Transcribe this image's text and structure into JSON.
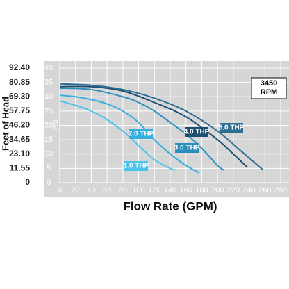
{
  "chart_data": {
    "type": "line",
    "xlabel": "Flow Rate (GPM)",
    "ylabel": "PSI",
    "y2label": "Feet of Head",
    "annotations": [
      "3450",
      "RPM"
    ],
    "xlim": [
      0,
      280
    ],
    "xticks": [
      0,
      20,
      40,
      60,
      80,
      100,
      120,
      140,
      160,
      180,
      200,
      220,
      240,
      260,
      280
    ],
    "ylim": [
      0,
      40
    ],
    "yticks": [
      0,
      5,
      10,
      15,
      20,
      25,
      30,
      35,
      40
    ],
    "y2lim": [
      0,
      92.4
    ],
    "y2ticks": [
      0,
      11.55,
      {
        "value": 23.1,
        "label": "23.10"
      },
      34.65,
      {
        "value": 46.2,
        "label": "46.20"
      },
      57.75,
      {
        "value": 69.3,
        "label": "69.30"
      },
      80.85,
      {
        "value": 92.4,
        "label": "92.40"
      }
    ],
    "grid": true,
    "series": [
      {
        "name": "1.0 THP",
        "color": "#4cc3ea",
        "x": [
          0,
          20,
          40,
          60,
          80,
          100,
          120,
          140,
          146
        ],
        "values": [
          28.5,
          27,
          25,
          22,
          18,
          13,
          8,
          5,
          4.4
        ]
      },
      {
        "name": "2.0 THP",
        "color": "#36aede",
        "x": [
          0,
          20,
          40,
          60,
          80,
          100,
          120,
          140,
          160,
          177
        ],
        "values": [
          30.5,
          30,
          29,
          27.5,
          25,
          21,
          15,
          10,
          6,
          3.4
        ]
      },
      {
        "name": "3.0 THP",
        "color": "#2a8fbf",
        "x": [
          0,
          40,
          80,
          100,
          120,
          140,
          160,
          180,
          200,
          208
        ],
        "values": [
          33,
          32.5,
          30,
          28,
          25,
          21,
          17,
          12,
          6,
          4.4
        ]
      },
      {
        "name": "4.0 THP",
        "color": "#1d4f72",
        "x": [
          0,
          40,
          80,
          120,
          160,
          200,
          220,
          238
        ],
        "values": [
          33.5,
          33.5,
          32,
          28,
          23,
          15,
          10,
          5.3
        ]
      },
      {
        "name": "5.0 THP",
        "color": "#2b6f92",
        "x": [
          0,
          40,
          80,
          120,
          160,
          200,
          230,
          258
        ],
        "values": [
          34.5,
          34,
          32.5,
          29.5,
          25,
          18,
          11,
          4.4
        ]
      }
    ]
  }
}
